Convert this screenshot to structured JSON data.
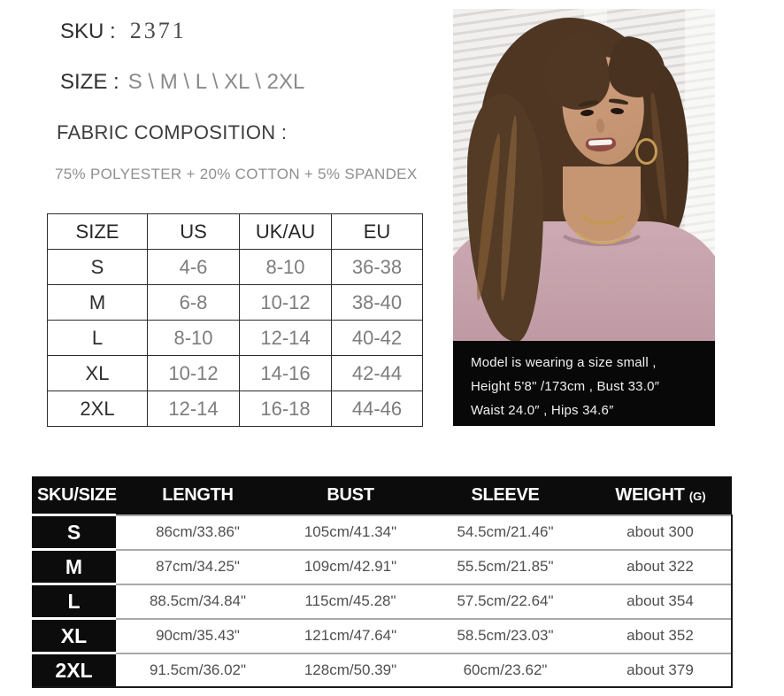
{
  "product_info": {
    "sku": {
      "label": "SKU :",
      "value": "2371"
    },
    "sizes": {
      "label": "SIZE :",
      "value": "S \\ M \\ L \\ XL \\ 2XL"
    },
    "fabric": {
      "label": "FABRIC COMPOSITION :",
      "value": "75% POLYESTER + 20% COTTON + 5% SPANDEX"
    }
  },
  "size_conversion_table": {
    "headers": [
      "SIZE",
      "US",
      "UK/AU",
      "EU"
    ],
    "rows": [
      [
        "S",
        "4-6",
        "8-10",
        "36-38"
      ],
      [
        "M",
        "6-8",
        "10-12",
        "38-40"
      ],
      [
        "L",
        "8-10",
        "12-14",
        "40-42"
      ],
      [
        "XL",
        "10-12",
        "14-16",
        "42-44"
      ],
      [
        "2XL",
        "12-14",
        "16-18",
        "44-46"
      ]
    ]
  },
  "model_section": {
    "photo_description": "model-wearing-pink-sweater-photo",
    "caption_lines": [
      "Model is wearing a size small ,",
      "Height  5'8\" /173cm ,  Bust 33.0″",
      "Waist 24.0″ ,  Hips 34.6″"
    ]
  },
  "measurement_table": {
    "headers": {
      "sku_size": "SKU/SIZE",
      "length": "LENGTH",
      "bust": "BUST",
      "sleeve": "SLEEVE",
      "weight": "WEIGHT",
      "weight_unit": "(G)"
    },
    "rows": [
      {
        "size": "S",
        "length": "86cm/33.86\"",
        "bust": "105cm/41.34\"",
        "sleeve": "54.5cm/21.46\"",
        "weight": "about 300"
      },
      {
        "size": "M",
        "length": "87cm/34.25\"",
        "bust": "109cm/42.91\"",
        "sleeve": "55.5cm/21.85\"",
        "weight": "about 322"
      },
      {
        "size": "L",
        "length": "88.5cm/34.84\"",
        "bust": "115cm/45.28\"",
        "sleeve": "57.5cm/22.64\"",
        "weight": "about 354"
      },
      {
        "size": "XL",
        "length": "90cm/35.43\"",
        "bust": "121cm/47.64\"",
        "sleeve": "58.5cm/23.03\"",
        "weight": "about 352"
      },
      {
        "size": "2XL",
        "length": "91.5cm/36.02\"",
        "bust": "128cm/50.39\"",
        "sleeve": "60cm/23.62\"",
        "weight": "about 379"
      }
    ]
  },
  "colors": {
    "sweater_pink": "#c4a0a9",
    "table_black": "#0c0c0c",
    "muted_text": "#8a8a8a",
    "row_divider": "#a9a9a9"
  }
}
